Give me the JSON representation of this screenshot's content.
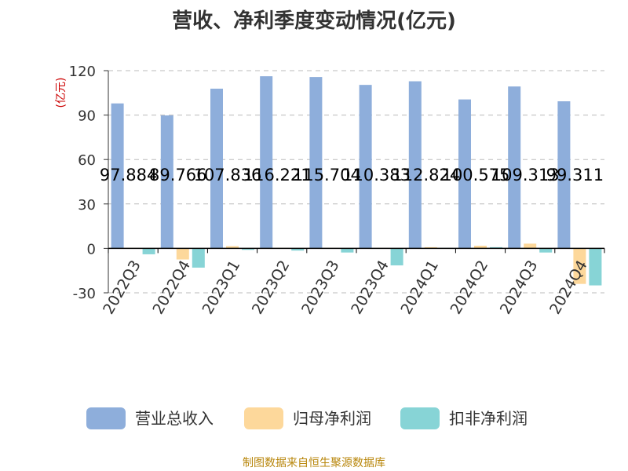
{
  "chart_data": {
    "type": "bar",
    "title": "营收、净利季度变动情况(亿元)",
    "ylabel": "(亿元)",
    "ylim": [
      -30,
      120
    ],
    "yticks": [
      120,
      90,
      60,
      30,
      0,
      -30
    ],
    "categories": [
      "2022Q3",
      "2022Q4",
      "2023Q1",
      "2023Q2",
      "2023Q3",
      "2023Q4",
      "2024Q1",
      "2024Q2",
      "2024Q3",
      "2024Q4"
    ],
    "series": [
      {
        "name": "营业总收入",
        "color": "#8eaedb",
        "values": [
          97.884,
          89.766,
          107.836,
          116.221,
          115.704,
          110.383,
          112.824,
          100.575,
          109.313,
          99.311
        ],
        "labels": [
          "97.884",
          "89.766",
          "107.836",
          "116.221",
          "115.704",
          "110.383",
          "112.824",
          "100.575",
          "109.313",
          "99.311"
        ]
      },
      {
        "name": "归母净利润",
        "color": "#fdd89b",
        "values": [
          0.3,
          -7.5,
          1.5,
          0.3,
          0.3,
          0.3,
          0.8,
          1.8,
          3.2,
          -24.0
        ]
      },
      {
        "name": "扣非净利润",
        "color": "#87d4d6",
        "values": [
          -4.0,
          -13.0,
          -1.0,
          -1.5,
          -2.8,
          -11.5,
          0.3,
          0.8,
          -2.8,
          -25.0
        ]
      }
    ],
    "grid": true,
    "legend_position": "bottom"
  },
  "source": "制图数据来自恒生聚源数据库"
}
